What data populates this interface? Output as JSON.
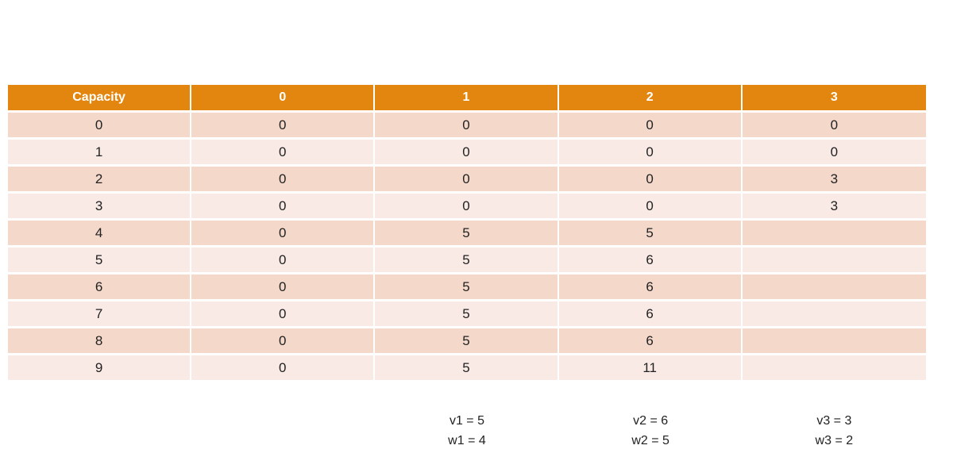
{
  "chart_data": {
    "type": "table",
    "columns": [
      "Capacity",
      "0",
      "1",
      "2",
      "3"
    ],
    "rows": [
      [
        "0",
        "0",
        "0",
        "0",
        "0"
      ],
      [
        "1",
        "0",
        "0",
        "0",
        "0"
      ],
      [
        "2",
        "0",
        "0",
        "0",
        "3"
      ],
      [
        "3",
        "0",
        "0",
        "0",
        "3"
      ],
      [
        "4",
        "0",
        "5",
        "5",
        ""
      ],
      [
        "5",
        "0",
        "5",
        "6",
        ""
      ],
      [
        "6",
        "0",
        "5",
        "6",
        ""
      ],
      [
        "7",
        "0",
        "5",
        "6",
        ""
      ],
      [
        "8",
        "0",
        "5",
        "6",
        ""
      ],
      [
        "9",
        "0",
        "5",
        "11",
        ""
      ]
    ],
    "layout_hints": {
      "banded_rows": true,
      "header_style": "orange-accent",
      "empty_cells": "rows 4-9 of item column 3 are blank"
    }
  },
  "annotations": [
    {
      "line1": "v1 = 5",
      "line2": "w1 = 4"
    },
    {
      "line1": "v2 = 6",
      "line2": "w2 = 5"
    },
    {
      "line1": "v3 = 3",
      "line2": "w3 = 2"
    }
  ],
  "colors": {
    "header_bg": "#E3860F",
    "header_text": "#FFFFFF",
    "row_band_dark": "#F4D9CB",
    "row_band_light": "#FAEAE6",
    "cell_text": "#222222",
    "background": "#FFFFFF"
  }
}
